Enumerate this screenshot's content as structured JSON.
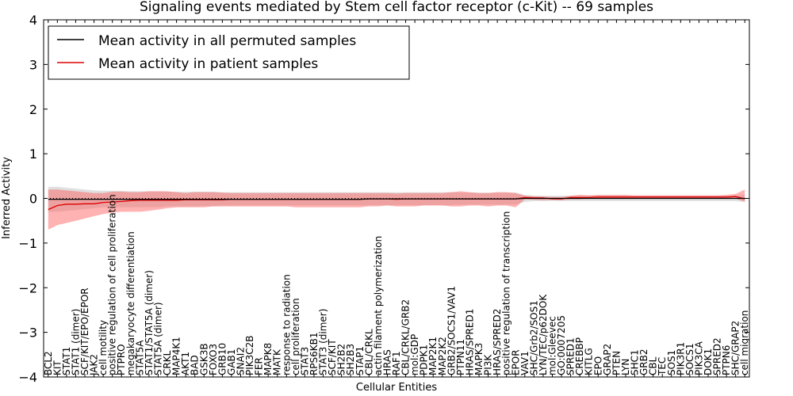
{
  "chart_data": {
    "type": "line",
    "title": "Signaling events mediated by Stem cell factor receptor (c-Kit) -- 69 samples",
    "xlabel": "Cellular Entities",
    "ylabel": "Inferred Activity",
    "ylim": [
      -4,
      4
    ],
    "yticks": [
      -4,
      -3,
      -2,
      -1,
      0,
      1,
      2,
      3,
      4
    ],
    "ytick_labels": [
      "−4",
      "−3",
      "−2",
      "−1",
      "0",
      "1",
      "2",
      "3",
      "4"
    ],
    "legend_position": "top-left",
    "categories": [
      "BCL2",
      "KIT",
      "STAT1",
      "STAT1 (dimer)",
      "SCF/KIT/EPO/EPOR",
      "JAK2",
      "cell motility",
      "positive regulation of cell proliferation",
      "PTPRO",
      "megakaryocyte differentiation",
      "STAT5A",
      "STAT1/STAT5A (dimer)",
      "STAT5A (dimer)",
      "CRKL",
      "MAP4K1",
      "AKT1",
      "BAD",
      "GSK3B",
      "FOXO3",
      "GRB10",
      "GAB1",
      "SNAI2",
      "PIK3C2B",
      "FER",
      "MAPK8",
      "MATK",
      "response to radiation",
      "cell proliferation",
      "STAT3",
      "RPS6KB1",
      "STAT3 (dimer)",
      "SCF/KIT",
      "SH2B2",
      "SH2B3",
      "STAP1",
      "CBL/CRKL",
      "actin filament polymerization",
      "HRAS",
      "RAF1",
      "CBL/CRKL/GRB2",
      "mol:GDP",
      "PDPK1",
      "MAP2K1",
      "MAP2K2",
      "GRB2/SOCS1/VAV1",
      "PTPN11",
      "HRAS/SPRED1",
      "MAPK3",
      "PI3K",
      "HRAS/SPRED2",
      "positive regulation of transcription",
      "EPOR",
      "VAV1",
      "SHC/Grb2/SOS1",
      "LYN/TEC/p62DOK",
      "mol:Gleevec",
      "GO:0007205",
      "SPRED1",
      "CREBBP",
      "KITLG",
      "EPO",
      "GRAP2",
      "PTEN",
      "LYN",
      "SHC1",
      "GRB2",
      "CBL",
      "TEC",
      "SOS1",
      "PIK3R1",
      "SOCS1",
      "PIK3CA",
      "DOK1",
      "SPRED2",
      "PTPN6",
      "SHC/GRAP2",
      "cell migration"
    ],
    "series": [
      {
        "name": "Mean activity in all permuted samples",
        "color": "#000000",
        "values": [
          -0.02,
          -0.02,
          -0.02,
          -0.02,
          -0.02,
          -0.02,
          -0.02,
          -0.02,
          -0.02,
          -0.02,
          -0.02,
          -0.02,
          -0.02,
          -0.02,
          -0.02,
          -0.02,
          -0.02,
          -0.02,
          -0.02,
          -0.02,
          -0.02,
          -0.02,
          -0.02,
          -0.02,
          -0.02,
          -0.02,
          -0.02,
          -0.02,
          -0.02,
          -0.02,
          -0.02,
          -0.02,
          -0.02,
          -0.02,
          -0.02,
          -0.01,
          -0.01,
          -0.01,
          -0.01,
          -0.01,
          -0.01,
          -0.01,
          -0.01,
          -0.01,
          -0.01,
          -0.01,
          -0.01,
          -0.01,
          -0.01,
          -0.01,
          -0.01,
          -0.01,
          0.0,
          0.0,
          0.0,
          0.0,
          0.0,
          0.0,
          0.0,
          0.0,
          0.0,
          0.0,
          0.0,
          0.0,
          0.0,
          0.0,
          0.0,
          0.0,
          0.0,
          0.0,
          0.0,
          0.0,
          0.0,
          0.0,
          0.0,
          0.0,
          0.0
        ],
        "band_lower": [
          -0.3,
          -0.3,
          -0.28,
          -0.26,
          -0.24,
          -0.22,
          -0.2,
          -0.2,
          -0.2,
          -0.2,
          -0.2,
          -0.2,
          -0.2,
          -0.18,
          -0.18,
          -0.18,
          -0.18,
          -0.17,
          -0.17,
          -0.16,
          -0.16,
          -0.16,
          -0.16,
          -0.16,
          -0.16,
          -0.16,
          -0.16,
          -0.16,
          -0.16,
          -0.16,
          -0.16,
          -0.16,
          -0.16,
          -0.16,
          -0.16,
          -0.15,
          -0.15,
          -0.15,
          -0.15,
          -0.15,
          -0.15,
          -0.15,
          -0.15,
          -0.15,
          -0.15,
          -0.14,
          -0.14,
          -0.14,
          -0.14,
          -0.14,
          -0.14,
          -0.14,
          -0.08,
          -0.06,
          -0.06,
          -0.06,
          -0.06,
          -0.06,
          -0.06,
          -0.06,
          -0.06,
          -0.06,
          -0.06,
          -0.06,
          -0.06,
          -0.06,
          -0.06,
          -0.06,
          -0.06,
          -0.06,
          -0.06,
          -0.06,
          -0.06,
          -0.06,
          -0.06,
          -0.06,
          -0.08
        ],
        "band_upper": [
          0.26,
          0.26,
          0.24,
          0.22,
          0.2,
          0.18,
          0.17,
          0.17,
          0.17,
          0.16,
          0.16,
          0.16,
          0.16,
          0.15,
          0.15,
          0.15,
          0.15,
          0.15,
          0.15,
          0.14,
          0.14,
          0.14,
          0.14,
          0.14,
          0.14,
          0.14,
          0.14,
          0.14,
          0.14,
          0.14,
          0.14,
          0.14,
          0.14,
          0.14,
          0.14,
          0.14,
          0.14,
          0.14,
          0.14,
          0.14,
          0.14,
          0.14,
          0.14,
          0.14,
          0.14,
          0.13,
          0.13,
          0.13,
          0.13,
          0.13,
          0.13,
          0.13,
          0.08,
          0.06,
          0.06,
          0.06,
          0.06,
          0.06,
          0.06,
          0.06,
          0.06,
          0.06,
          0.06,
          0.06,
          0.06,
          0.06,
          0.06,
          0.06,
          0.06,
          0.06,
          0.06,
          0.06,
          0.06,
          0.06,
          0.06,
          0.06,
          0.08
        ]
      },
      {
        "name": "Mean activity in patient samples",
        "color": "#dd0000",
        "values": [
          -0.25,
          -0.16,
          -0.13,
          -0.13,
          -0.12,
          -0.12,
          -0.09,
          -0.08,
          -0.07,
          -0.05,
          -0.04,
          -0.04,
          -0.04,
          -0.04,
          -0.04,
          -0.03,
          -0.03,
          -0.03,
          -0.03,
          -0.03,
          -0.02,
          -0.02,
          -0.02,
          -0.02,
          -0.02,
          -0.02,
          -0.02,
          -0.02,
          -0.02,
          -0.02,
          -0.02,
          -0.02,
          -0.02,
          -0.02,
          -0.02,
          -0.01,
          -0.01,
          -0.01,
          -0.02,
          -0.01,
          -0.01,
          -0.01,
          -0.01,
          -0.01,
          -0.01,
          -0.01,
          -0.01,
          -0.01,
          -0.01,
          -0.01,
          -0.01,
          -0.01,
          0.02,
          0.01,
          0.01,
          -0.01,
          -0.01,
          0.02,
          0.02,
          0.02,
          0.03,
          0.03,
          0.03,
          0.03,
          0.03,
          0.03,
          0.03,
          0.03,
          0.03,
          0.03,
          0.03,
          0.03,
          0.03,
          0.03,
          0.03,
          0.04,
          -0.01
        ],
        "band_lower": [
          -0.7,
          -0.6,
          -0.55,
          -0.5,
          -0.45,
          -0.4,
          -0.35,
          -0.32,
          -0.3,
          -0.3,
          -0.3,
          -0.28,
          -0.25,
          -0.22,
          -0.2,
          -0.2,
          -0.2,
          -0.2,
          -0.18,
          -0.18,
          -0.18,
          -0.18,
          -0.18,
          -0.18,
          -0.18,
          -0.18,
          -0.18,
          -0.2,
          -0.2,
          -0.2,
          -0.2,
          -0.2,
          -0.2,
          -0.2,
          -0.2,
          -0.18,
          -0.18,
          -0.16,
          -0.18,
          -0.18,
          -0.18,
          -0.16,
          -0.16,
          -0.16,
          -0.18,
          -0.18,
          -0.16,
          -0.16,
          -0.18,
          -0.16,
          -0.16,
          -0.2,
          -0.02,
          -0.03,
          -0.04,
          -0.03,
          -0.04,
          -0.02,
          -0.02,
          0.0,
          0.0,
          0.0,
          0.0,
          0.0,
          0.0,
          0.0,
          0.0,
          0.0,
          0.0,
          0.0,
          0.0,
          0.0,
          0.0,
          0.0,
          0.0,
          0.0,
          -0.08
        ],
        "band_upper": [
          0.2,
          0.2,
          0.18,
          0.16,
          0.14,
          0.12,
          0.12,
          0.15,
          0.15,
          0.14,
          0.14,
          0.16,
          0.16,
          0.16,
          0.14,
          0.12,
          0.14,
          0.14,
          0.14,
          0.13,
          0.12,
          0.12,
          0.12,
          0.12,
          0.12,
          0.12,
          0.12,
          0.12,
          0.12,
          0.12,
          0.12,
          0.12,
          0.12,
          0.12,
          0.12,
          0.12,
          0.12,
          0.12,
          0.11,
          0.12,
          0.12,
          0.12,
          0.12,
          0.12,
          0.14,
          0.16,
          0.14,
          0.12,
          0.12,
          0.14,
          0.14,
          0.12,
          0.06,
          0.05,
          0.04,
          0.03,
          0.03,
          0.06,
          0.08,
          0.07,
          0.08,
          0.08,
          0.08,
          0.08,
          0.07,
          0.07,
          0.07,
          0.07,
          0.07,
          0.07,
          0.07,
          0.07,
          0.07,
          0.07,
          0.08,
          0.1,
          0.2
        ]
      }
    ]
  }
}
